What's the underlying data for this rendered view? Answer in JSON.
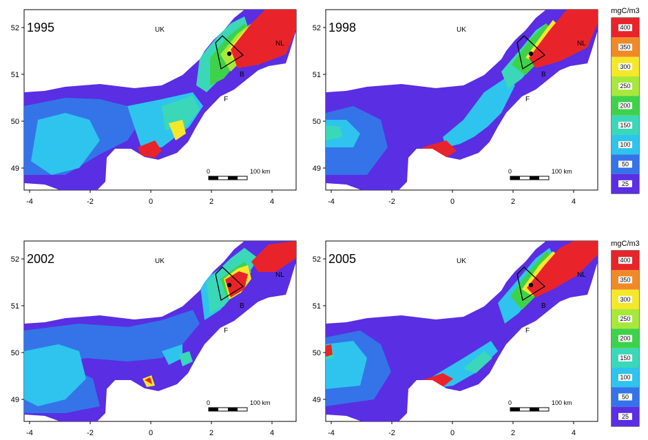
{
  "colors": {
    "bg_land": "#ffffff",
    "c400": "#e8242a",
    "c350": "#f08a28",
    "c300": "#f5e82a",
    "c250": "#a8e83a",
    "c200": "#3ed24a",
    "c150": "#3ad8b8",
    "c100": "#2ec4ee",
    "c50": "#3474e8",
    "c25": "#5a2ee2"
  },
  "axes": {
    "x_ticks": [
      "-4",
      "-2",
      "0",
      "2",
      "4"
    ],
    "y_ticks": [
      "49",
      "50",
      "51",
      "52"
    ]
  },
  "countries": {
    "uk": "UK",
    "nl": "NL",
    "b": "B",
    "f": "F"
  },
  "scalebar": {
    "zero": "0",
    "distance": "100 km"
  },
  "panels": [
    {
      "year": "1995"
    },
    {
      "year": "1998"
    },
    {
      "year": "2002"
    },
    {
      "year": "2005"
    }
  ],
  "colorbars": [
    {
      "unit": "mgC/m3",
      "labels": [
        "400",
        "350",
        "300",
        "250",
        "200",
        "150",
        "100",
        "50",
        "25"
      ]
    },
    {
      "unit": "mgC/m3",
      "labels": [
        "400",
        "350",
        "300",
        "250",
        "200",
        "150",
        "100",
        "50",
        "25"
      ]
    }
  ]
}
